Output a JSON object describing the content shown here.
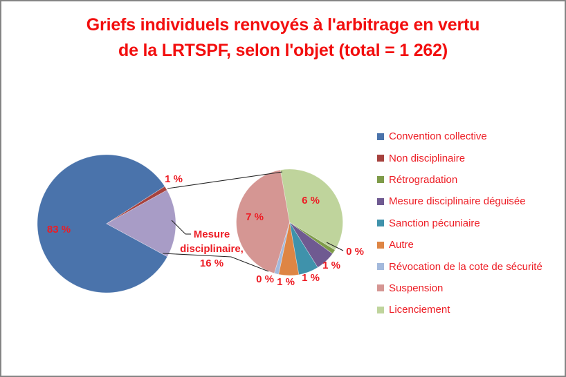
{
  "title": {
    "line1": "Griefs individuels renvoyés à l'arbitrage en vertu",
    "line2": "de la LRTSPF, selon l'objet (total = 1 262)"
  },
  "colors": {
    "title_red": "#F20E0E",
    "label_red": "#ED1C24",
    "frame_gray": "#848484",
    "connector": "#262626",
    "group_slice": "#A89CC6"
  },
  "chart_data": {
    "type": "pie",
    "subtype": "pie-of-pie",
    "title": "Griefs individuels renvoyés à l'arbitrage en vertu de la LRTSPF, selon l'objet (total = 1 262)",
    "total_label": "1 262",
    "legend_position": "right",
    "legend": [
      {
        "label": "Convention collective",
        "color": "#4A73AB"
      },
      {
        "label": "Non disciplinaire",
        "color": "#A6423E"
      },
      {
        "label": "Rétrogradation",
        "color": "#7E9B49"
      },
      {
        "label": "Mesure disciplinaire déguisée",
        "color": "#6F5A91"
      },
      {
        "label": "Sanction pécuniaire",
        "color": "#3F92AB"
      },
      {
        "label": "Autre",
        "color": "#DE8544"
      },
      {
        "label": "Révocation de la cote de sécurité",
        "color": "#A3B9DC"
      },
      {
        "label": "Suspension",
        "color": "#D59693"
      },
      {
        "label": "Licenciement",
        "color": "#BFD49C"
      }
    ],
    "main_pie": {
      "slices": [
        {
          "label": "Convention collective",
          "pct": 83,
          "display": "83 %"
        },
        {
          "label": "Non disciplinaire",
          "pct": 1,
          "display": "1 %"
        },
        {
          "label": "Mesure disciplinaire",
          "pct": 16,
          "display": "Mesure disciplinaire, 16 %"
        }
      ]
    },
    "secondary_pie": {
      "slices": [
        {
          "label": "Licenciement",
          "pct": 6,
          "display": "6 %"
        },
        {
          "label": "Rétrogradation",
          "pct": 0,
          "display": "0 %"
        },
        {
          "label": "Mesure disciplinaire déguisée",
          "pct": 1,
          "display": "1 %"
        },
        {
          "label": "Sanction pécuniaire",
          "pct": 1,
          "display": "1 %"
        },
        {
          "label": "Autre",
          "pct": 1,
          "display": "1 %"
        },
        {
          "label": "Révocation de la cote de sécurité",
          "pct": 0,
          "display": "0 %"
        },
        {
          "label": "Suspension",
          "pct": 7,
          "display": "7 %"
        }
      ]
    }
  }
}
